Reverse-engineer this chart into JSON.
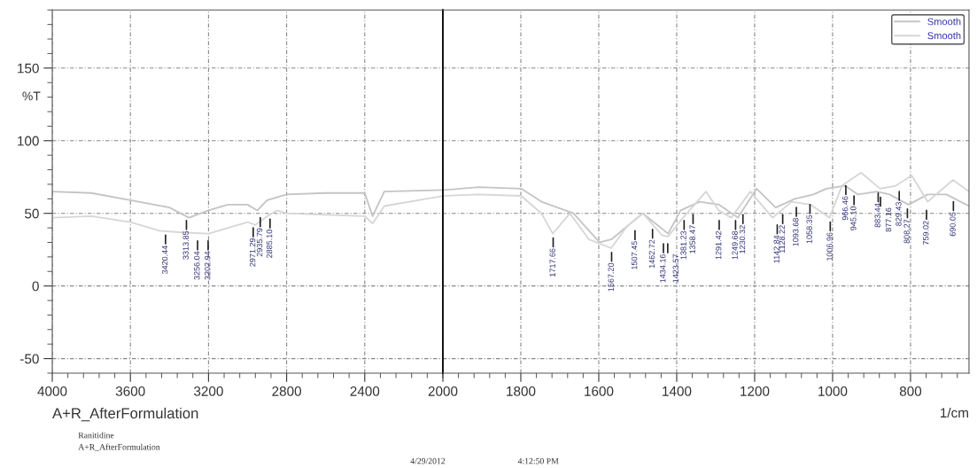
{
  "chart_data": [
    {
      "type": "line",
      "xlabel": "A+R_AfterFormulation",
      "ylabel": "%T",
      "xlim": [
        4000,
        2000
      ],
      "ylim": [
        -60,
        190
      ],
      "grid": true,
      "tick_labels": true,
      "xticks": [
        4000,
        {
          "value": 3920,
          "label": null
        },
        {
          "value": 3840,
          "label": null
        },
        {
          "value": 3760,
          "label": null
        },
        {
          "value": 3680,
          "label": null
        },
        3600,
        {
          "value": 3520,
          "label": null
        },
        {
          "value": 3440,
          "label": null
        },
        {
          "value": 3360,
          "label": null
        },
        {
          "value": 3280,
          "label": null
        },
        3200,
        {
          "value": 3120,
          "label": null
        },
        {
          "value": 3040,
          "label": null
        },
        {
          "value": 2960,
          "label": null
        },
        {
          "value": 2880,
          "label": null
        },
        2800,
        {
          "value": 2720,
          "label": null
        },
        {
          "value": 2640,
          "label": null
        },
        {
          "value": 2560,
          "label": null
        },
        {
          "value": 2480,
          "label": null
        },
        2400,
        {
          "value": 2320,
          "label": null
        },
        {
          "value": 2240,
          "label": null
        },
        {
          "value": 2160,
          "label": null
        },
        {
          "value": 2080,
          "label": null
        },
        2000
      ],
      "yticks": [
        {
          "value": -60,
          "label": null
        },
        -50,
        {
          "value": -40,
          "label": null
        },
        {
          "value": -30,
          "label": null
        },
        {
          "value": -20,
          "label": null
        },
        {
          "value": -10,
          "label": null
        },
        0,
        {
          "value": 10,
          "label": null
        },
        {
          "value": 20,
          "label": null
        },
        {
          "value": 30,
          "label": null
        },
        {
          "value": 40,
          "label": null
        },
        50,
        {
          "value": 60,
          "label": null
        },
        {
          "value": 70,
          "label": null
        },
        {
          "value": 80,
          "label": null
        },
        {
          "value": 90,
          "label": null
        },
        100,
        {
          "value": 110,
          "label": null
        },
        {
          "value": 120,
          "label": null
        },
        {
          "value": 130,
          "label": null
        },
        {
          "value": 140,
          "label": null
        },
        150,
        {
          "value": 160,
          "label": null
        },
        {
          "value": 170,
          "label": null
        },
        {
          "value": 180,
          "label": null
        },
        {
          "value": 190,
          "label": null
        }
      ],
      "series": [
        {
          "color": "#c4c4c4",
          "x": [
            4000,
            3800,
            3600,
            3400,
            3300,
            3200,
            3100,
            3000,
            2950,
            2900,
            2800,
            2600,
            2400,
            2360,
            2300,
            2000
          ],
          "values": [
            65,
            64,
            59,
            54,
            47,
            52,
            56,
            56,
            52,
            59,
            63,
            64,
            64,
            48,
            65,
            66
          ]
        },
        {
          "color": "#d6d6d6",
          "x": [
            4000,
            3800,
            3600,
            3450,
            3350,
            3200,
            3100,
            3000,
            2960,
            2900,
            2850,
            2800,
            2600,
            2400,
            2360,
            2300,
            2000
          ],
          "values": [
            47,
            48,
            44,
            38,
            37,
            36,
            40,
            44,
            42,
            48,
            52,
            50,
            49,
            48,
            43,
            55,
            62
          ]
        }
      ],
      "annotations": [
        {
          "text": "3420.44",
          "x": 3420,
          "y": 38
        },
        {
          "text": "3313.85",
          "x": 3313,
          "y": 48
        },
        {
          "text": "3256.04",
          "x": 3256,
          "y": 34
        },
        {
          "text": "3202.94",
          "x": 3202,
          "y": 34
        },
        {
          "text": "2971.29",
          "x": 2971,
          "y": 43
        },
        {
          "text": "2935.79",
          "x": 2935,
          "y": 50
        },
        {
          "text": "2885.10",
          "x": 2885,
          "y": 49
        },
        "Ranitidine",
        "A+R_AfterFormulation",
        "4/29/2012",
        "4:12:50 PM"
      ]
    },
    {
      "type": "line",
      "xlabel": "1/cm",
      "xlim": [
        2000,
        650
      ],
      "ylim": [
        -60,
        190
      ],
      "grid": true,
      "tick_labels": "x",
      "legend": "top right",
      "yticks": [
        -50,
        0,
        50,
        100,
        150
      ],
      "xticks": [
        {
          "value": 2000,
          "label": null
        },
        {
          "value": 1960,
          "label": null
        },
        {
          "value": 1920,
          "label": null
        },
        {
          "value": 1880,
          "label": null
        },
        {
          "value": 1840,
          "label": null
        },
        1800,
        {
          "value": 1760,
          "label": null
        },
        {
          "value": 1720,
          "label": null
        },
        {
          "value": 1680,
          "label": null
        },
        {
          "value": 1640,
          "label": null
        },
        1600,
        {
          "value": 1560,
          "label": null
        },
        {
          "value": 1520,
          "label": null
        },
        {
          "value": 1480,
          "label": null
        },
        {
          "value": 1440,
          "label": null
        },
        1400,
        {
          "value": 1360,
          "label": null
        },
        {
          "value": 1320,
          "label": null
        },
        {
          "value": 1280,
          "label": null
        },
        {
          "value": 1240,
          "label": null
        },
        1200,
        {
          "value": 1160,
          "label": null
        },
        {
          "value": 1120,
          "label": null
        },
        {
          "value": 1080,
          "label": null
        },
        {
          "value": 1040,
          "label": null
        },
        1000,
        {
          "value": 960,
          "label": null
        },
        {
          "value": 920,
          "label": null
        },
        {
          "value": 880,
          "label": null
        },
        {
          "value": 840,
          "label": null
        },
        800,
        {
          "value": 760,
          "label": null
        },
        {
          "value": 720,
          "label": null
        },
        {
          "value": 680,
          "label": null
        }
      ],
      "series": [
        {
          "name": "Smooth",
          "color": "#c4c4c4",
          "x": [
            2000,
            1909,
            1799,
            1747,
            1665,
            1598,
            1568,
            1487,
            1422,
            1390,
            1341,
            1292,
            1243,
            1195,
            1146,
            1097,
            1049,
            1016,
            968,
            935,
            886,
            854,
            805,
            756,
            708,
            650
          ],
          "values": [
            66,
            68,
            67,
            58,
            50,
            30,
            32,
            50,
            36,
            52,
            58,
            56,
            47,
            67,
            54,
            60,
            63,
            67,
            69,
            63,
            65,
            63,
            56,
            63,
            63,
            55
          ]
        },
        {
          "name": "Smooth",
          "color": "#d6d6d6",
          "x": [
            2000,
            1909,
            1799,
            1747,
            1718,
            1674,
            1625,
            1568,
            1528,
            1487,
            1438,
            1422,
            1390,
            1325,
            1292,
            1260,
            1211,
            1154,
            1105,
            1057,
            1008,
            976,
            927,
            878,
            838,
            797,
            756,
            691,
            650
          ],
          "values": [
            62,
            63,
            62,
            50,
            36,
            50,
            32,
            26,
            41,
            50,
            35,
            34,
            45,
            65,
            52,
            47,
            65,
            47,
            58,
            56,
            47,
            69,
            78,
            67,
            69,
            76,
            58,
            73,
            65
          ]
        }
      ],
      "annotations": [
        {
          "text": "1717.66",
          "x": 1717,
          "y": 36
        },
        {
          "text": "1567.20",
          "x": 1567,
          "y": 26
        },
        {
          "text": "1507.45",
          "x": 1507,
          "y": 41
        },
        {
          "text": "1462.72",
          "x": 1462,
          "y": 42
        },
        {
          "text": "1434.16",
          "x": 1434,
          "y": 32
        },
        {
          "text": "1423.57",
          "x": 1423,
          "y": 32
        },
        {
          "text": "1381.23",
          "x": 1381,
          "y": 48
        },
        {
          "text": "1358.47",
          "x": 1358,
          "y": 52
        },
        {
          "text": "1291.42",
          "x": 1291,
          "y": 48
        },
        {
          "text": "1249.68",
          "x": 1249,
          "y": 48
        },
        {
          "text": "1230.32",
          "x": 1230,
          "y": 52
        },
        {
          "text": "1142.84",
          "x": 1142,
          "y": 45
        },
        {
          "text": "1128.22",
          "x": 1128,
          "y": 52
        },
        {
          "text": "1093.68",
          "x": 1093,
          "y": 57
        },
        {
          "text": "1058.35",
          "x": 1058,
          "y": 59
        },
        {
          "text": "1006.96",
          "x": 1006,
          "y": 47
        },
        {
          "text": "966.46",
          "x": 966,
          "y": 72
        },
        {
          "text": "945.10",
          "x": 945,
          "y": 65
        },
        {
          "text": "883.44",
          "x": 883,
          "y": 67
        },
        {
          "text": "877.16",
          "x": 877,
          "y": 64
        },
        {
          "text": "829.43",
          "x": 829,
          "y": 68
        },
        {
          "text": "808.27",
          "x": 808,
          "y": 56
        },
        {
          "text": "759.02",
          "x": 759,
          "y": 55
        },
        {
          "text": "690.05",
          "x": 690,
          "y": 61
        }
      ]
    }
  ]
}
